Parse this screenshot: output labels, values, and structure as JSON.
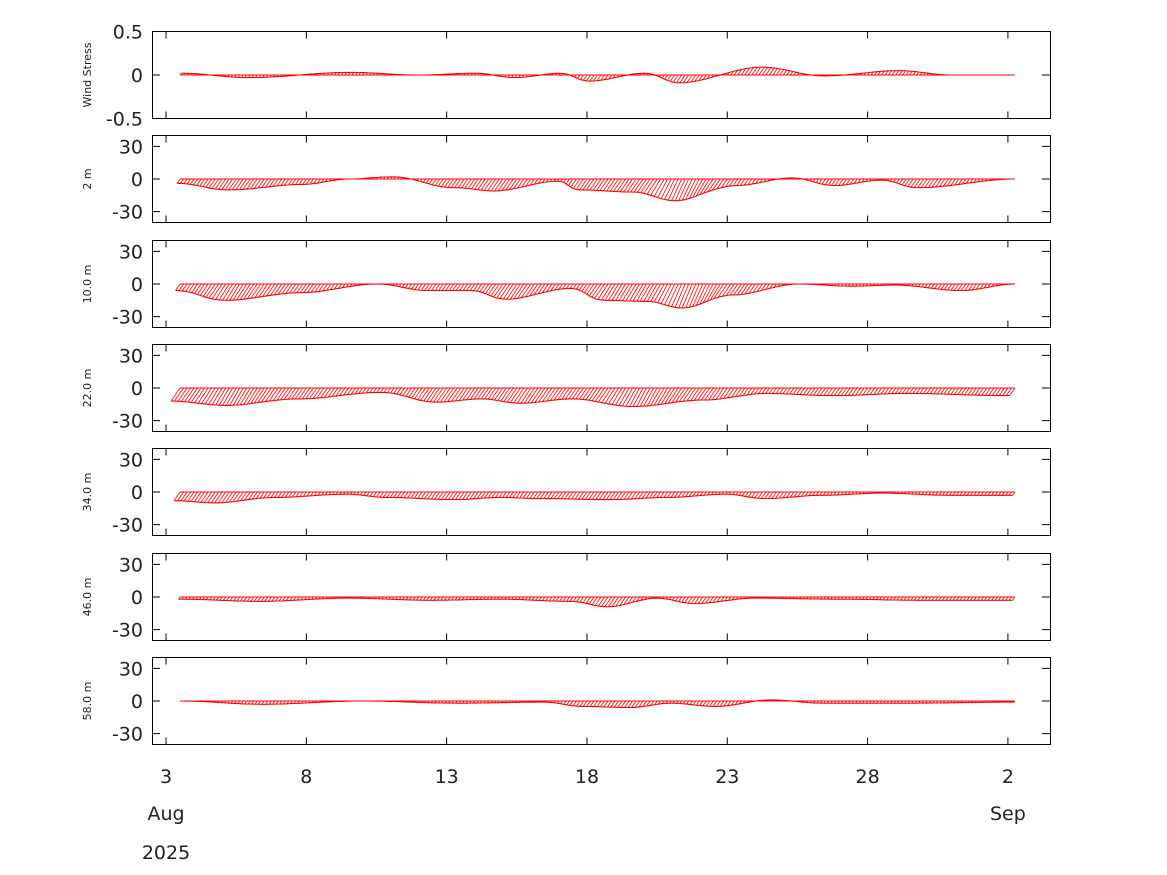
{
  "chart_data": {
    "type": "stick",
    "x_axis": {
      "ticks": [
        {
          "date": "2025-08-03",
          "label": "3"
        },
        {
          "date": "2025-08-08",
          "label": "8"
        },
        {
          "date": "2025-08-13",
          "label": "13"
        },
        {
          "date": "2025-08-18",
          "label": "18"
        },
        {
          "date": "2025-08-23",
          "label": "23"
        },
        {
          "date": "2025-08-28",
          "label": "28"
        },
        {
          "date": "2025-09-02",
          "label": "2"
        }
      ],
      "month_labels": [
        {
          "date": "2025-08-03",
          "label": "Aug"
        },
        {
          "date": "2025-09-02",
          "label": "Sep"
        }
      ],
      "year_label": "2025",
      "xlim": [
        "2025-08-02T12:00",
        "2025-09-03T12:00"
      ],
      "series_range": [
        "2025-08-03T12:00",
        "2025-09-02T06:00"
      ]
    },
    "stick_color": "#ff0000",
    "panels": [
      {
        "ylabel": "Wind Stress",
        "ylim": [
          -0.5,
          0.5
        ],
        "yticks": [
          {
            "value": 0.5,
            "label": "0.5"
          },
          {
            "value": 0,
            "label": "0"
          },
          {
            "value": -0.5,
            "label": "-0.5"
          }
        ],
        "profile": [
          [
            "2025-08-03T12:00",
            0.02
          ],
          [
            "2025-08-06T00:00",
            -0.03
          ],
          [
            "2025-08-09T12:00",
            0.03
          ],
          [
            "2025-08-12T00:00",
            0.0
          ],
          [
            "2025-08-14T00:00",
            0.02
          ],
          [
            "2025-08-15T12:00",
            -0.03
          ],
          [
            "2025-08-17T00:00",
            0.02
          ],
          [
            "2025-08-18T06:00",
            -0.07
          ],
          [
            "2025-08-20T00:00",
            0.02
          ],
          [
            "2025-08-21T12:00",
            -0.09
          ],
          [
            "2025-08-24T00:00",
            0.09
          ],
          [
            "2025-08-26T12:00",
            -0.01
          ],
          [
            "2025-08-29T00:00",
            0.05
          ],
          [
            "2025-08-31T00:00",
            0.0
          ],
          [
            "2025-09-02T06:00",
            0.0
          ]
        ]
      },
      {
        "ylabel": "2 m",
        "ylim": [
          -40,
          40
        ],
        "yticks": [
          {
            "value": 30,
            "label": "30"
          },
          {
            "value": 0,
            "label": "0"
          },
          {
            "value": -30,
            "label": "-30"
          }
        ],
        "profile": [
          [
            "2025-08-03T12:00",
            -4
          ],
          [
            "2025-08-05T12:00",
            -10
          ],
          [
            "2025-08-08T00:00",
            -5
          ],
          [
            "2025-08-09T12:00",
            0
          ],
          [
            "2025-08-11T00:00",
            2
          ],
          [
            "2025-08-13T12:00",
            -8
          ],
          [
            "2025-08-15T00:00",
            -11
          ],
          [
            "2025-08-17T00:00",
            -2
          ],
          [
            "2025-08-18T00:00",
            -10
          ],
          [
            "2025-08-20T00:00",
            -12
          ],
          [
            "2025-08-21T12:00",
            -20
          ],
          [
            "2025-08-23T12:00",
            -6
          ],
          [
            "2025-08-25T06:00",
            1
          ],
          [
            "2025-08-27T00:00",
            -6
          ],
          [
            "2025-08-28T12:00",
            -1
          ],
          [
            "2025-08-30T00:00",
            -8
          ],
          [
            "2025-09-02T06:00",
            0
          ]
        ]
      },
      {
        "ylabel": "10.0 m",
        "ylim": [
          -40,
          40
        ],
        "yticks": [
          {
            "value": 30,
            "label": "30"
          },
          {
            "value": 0,
            "label": "0"
          },
          {
            "value": -30,
            "label": "-30"
          }
        ],
        "profile": [
          [
            "2025-08-03T12:00",
            -6
          ],
          [
            "2025-08-05T12:00",
            -15
          ],
          [
            "2025-08-08T00:00",
            -8
          ],
          [
            "2025-08-10T12:00",
            0
          ],
          [
            "2025-08-12T12:00",
            -6
          ],
          [
            "2025-08-14T00:00",
            -6
          ],
          [
            "2025-08-15T12:00",
            -14
          ],
          [
            "2025-08-17T12:00",
            -4
          ],
          [
            "2025-08-19T00:00",
            -15
          ],
          [
            "2025-08-20T12:00",
            -16
          ],
          [
            "2025-08-21T18:00",
            -22
          ],
          [
            "2025-08-23T12:00",
            -10
          ],
          [
            "2025-08-25T12:00",
            0
          ],
          [
            "2025-08-27T12:00",
            -2
          ],
          [
            "2025-08-29T00:00",
            -1
          ],
          [
            "2025-08-31T12:00",
            -6
          ],
          [
            "2025-09-02T06:00",
            0
          ]
        ]
      },
      {
        "ylabel": "22.0 m",
        "ylim": [
          -40,
          40
        ],
        "yticks": [
          {
            "value": 30,
            "label": "30"
          },
          {
            "value": 0,
            "label": "0"
          },
          {
            "value": -30,
            "label": "-30"
          }
        ],
        "profile": [
          [
            "2025-08-03T12:00",
            -12
          ],
          [
            "2025-08-05T12:00",
            -16
          ],
          [
            "2025-08-08T00:00",
            -10
          ],
          [
            "2025-08-10T18:00",
            -4
          ],
          [
            "2025-08-13T00:00",
            -13
          ],
          [
            "2025-08-14T12:00",
            -10
          ],
          [
            "2025-08-16T00:00",
            -14
          ],
          [
            "2025-08-17T18:00",
            -10
          ],
          [
            "2025-08-20T00:00",
            -17
          ],
          [
            "2025-08-22T12:00",
            -11
          ],
          [
            "2025-08-24T12:00",
            -5
          ],
          [
            "2025-08-27T00:00",
            -7
          ],
          [
            "2025-08-29T12:00",
            -5
          ],
          [
            "2025-09-02T06:00",
            -7
          ]
        ]
      },
      {
        "ylabel": "34.0 m",
        "ylim": [
          -40,
          40
        ],
        "yticks": [
          {
            "value": 30,
            "label": "30"
          },
          {
            "value": 0,
            "label": "0"
          },
          {
            "value": -30,
            "label": "-30"
          }
        ],
        "profile": [
          [
            "2025-08-03T12:00",
            -8
          ],
          [
            "2025-08-05T00:00",
            -10
          ],
          [
            "2025-08-07T00:00",
            -5
          ],
          [
            "2025-08-09T12:00",
            -2
          ],
          [
            "2025-08-11T00:00",
            -5
          ],
          [
            "2025-08-13T12:00",
            -7
          ],
          [
            "2025-08-15T00:00",
            -5
          ],
          [
            "2025-08-16T12:00",
            -6
          ],
          [
            "2025-08-19T00:00",
            -7
          ],
          [
            "2025-08-21T00:00",
            -5
          ],
          [
            "2025-08-23T00:00",
            -2
          ],
          [
            "2025-08-24T12:00",
            -6
          ],
          [
            "2025-08-26T12:00",
            -3
          ],
          [
            "2025-08-28T12:00",
            -1
          ],
          [
            "2025-08-31T00:00",
            -3
          ],
          [
            "2025-09-02T06:00",
            -3
          ]
        ]
      },
      {
        "ylabel": "46.0 m",
        "ylim": [
          -40,
          40
        ],
        "yticks": [
          {
            "value": 30,
            "label": "30"
          },
          {
            "value": 0,
            "label": "0"
          },
          {
            "value": -30,
            "label": "-30"
          }
        ],
        "profile": [
          [
            "2025-08-03T12:00",
            -2
          ],
          [
            "2025-08-06T12:00",
            -4
          ],
          [
            "2025-08-09T12:00",
            -1
          ],
          [
            "2025-08-12T12:00",
            -3
          ],
          [
            "2025-08-15T00:00",
            -2
          ],
          [
            "2025-08-17T12:00",
            -4
          ],
          [
            "2025-08-19T00:00",
            -9
          ],
          [
            "2025-08-20T12:00",
            -1
          ],
          [
            "2025-08-22T00:00",
            -6
          ],
          [
            "2025-08-24T00:00",
            -1
          ],
          [
            "2025-08-27T00:00",
            -2
          ],
          [
            "2025-08-30T00:00",
            -3
          ],
          [
            "2025-09-02T06:00",
            -3
          ]
        ]
      },
      {
        "ylabel": "58.0 m",
        "ylim": [
          -40,
          40
        ],
        "yticks": [
          {
            "value": 30,
            "label": "30"
          },
          {
            "value": 0,
            "label": "0"
          },
          {
            "value": -30,
            "label": "-30"
          }
        ],
        "profile": [
          [
            "2025-08-03T12:00",
            0
          ],
          [
            "2025-08-06T12:00",
            -3
          ],
          [
            "2025-08-10T00:00",
            0
          ],
          [
            "2025-08-13T12:00",
            -2
          ],
          [
            "2025-08-16T12:00",
            -1
          ],
          [
            "2025-08-18T00:00",
            -5
          ],
          [
            "2025-08-19T18:00",
            -6
          ],
          [
            "2025-08-21T00:00",
            -2
          ],
          [
            "2025-08-22T18:00",
            -5
          ],
          [
            "2025-08-24T12:00",
            1
          ],
          [
            "2025-08-26T12:00",
            -2
          ],
          [
            "2025-08-29T12:00",
            -2
          ],
          [
            "2025-09-02T06:00",
            -1
          ]
        ]
      }
    ]
  }
}
